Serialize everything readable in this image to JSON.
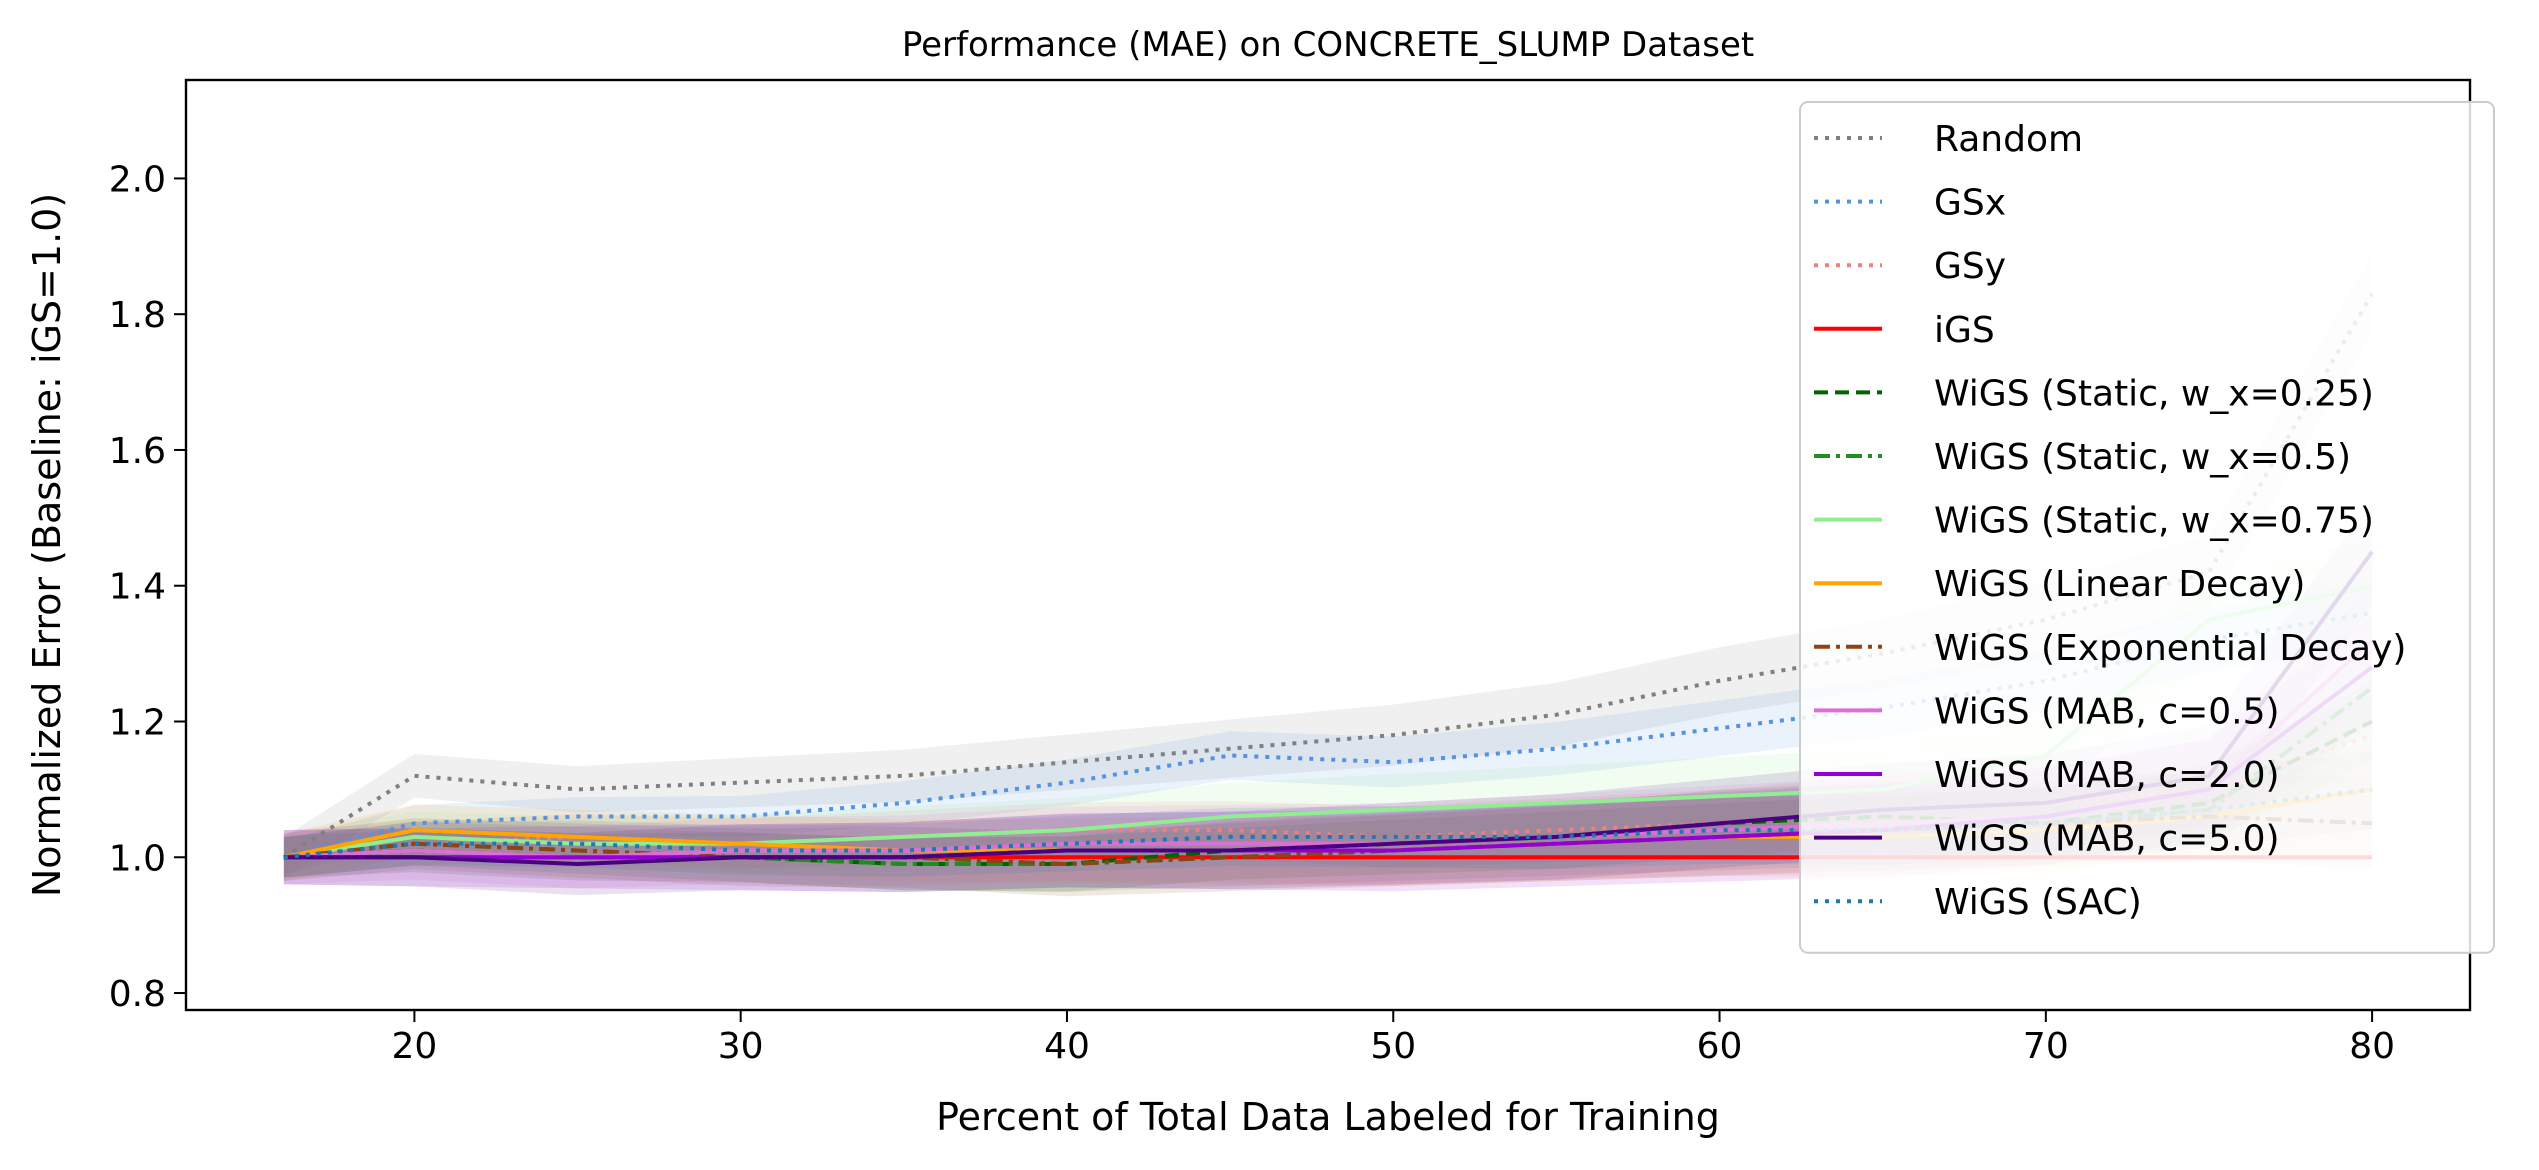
{
  "chart_data": {
    "type": "line",
    "title": "Performance (MAE) on CONCRETE_SLUMP Dataset",
    "xlabel": "Percent of Total Data Labeled for Training",
    "ylabel": "Normalized Error (Baseline: iGS=1.0)",
    "xlim": [
      13,
      83
    ],
    "ylim": [
      0.775,
      2.145
    ],
    "xticks": [
      20,
      30,
      40,
      50,
      60,
      70,
      80
    ],
    "yticks": [
      0.8,
      1.0,
      1.2,
      1.4,
      1.6,
      1.8,
      2.0
    ],
    "xtick_labels": [
      "20",
      "30",
      "40",
      "50",
      "60",
      "70",
      "80"
    ],
    "ytick_labels": [
      "0.8",
      "1.0",
      "1.2",
      "1.4",
      "1.6",
      "1.8",
      "2.0"
    ],
    "legend_position": "top-right",
    "grid": false,
    "x": [
      16,
      20,
      25,
      30,
      35,
      40,
      45,
      50,
      55,
      60,
      65,
      70,
      75,
      80
    ],
    "series": [
      {
        "name": "Random",
        "color": "#808080",
        "dash": "dotted",
        "values": [
          1.0,
          1.12,
          1.1,
          1.11,
          1.12,
          1.14,
          1.16,
          1.18,
          1.21,
          1.26,
          1.3,
          1.35,
          1.42,
          1.83
        ],
        "band": 0.03
      },
      {
        "name": "GSx",
        "color": "#5592e0",
        "dash": "dotted",
        "values": [
          1.0,
          1.05,
          1.06,
          1.06,
          1.08,
          1.11,
          1.15,
          1.14,
          1.16,
          1.19,
          1.22,
          1.26,
          1.32,
          1.36
        ],
        "band": 0.025
      },
      {
        "name": "GSy",
        "color": "#f08080",
        "dash": "dotted",
        "values": [
          1.0,
          1.02,
          1.03,
          1.02,
          1.03,
          1.04,
          1.04,
          1.03,
          1.04,
          1.05,
          1.07,
          1.08,
          1.1,
          1.18
        ],
        "band": 0.03
      },
      {
        "name": "iGS",
        "color": "#ff0000",
        "dash": "solid",
        "values": [
          1.0,
          1.0,
          1.0,
          1.0,
          1.0,
          1.0,
          1.0,
          1.0,
          1.0,
          1.0,
          1.0,
          1.0,
          1.0,
          1.0
        ],
        "band": 0.0
      },
      {
        "name": "WiGS (Static, w_x=0.25)",
        "color": "#006400",
        "dash": "dashed",
        "values": [
          1.0,
          1.01,
          1.0,
          1.0,
          0.99,
          0.99,
          1.01,
          1.02,
          1.03,
          1.05,
          1.06,
          1.05,
          1.08,
          1.2
        ],
        "band": 0.03
      },
      {
        "name": "WiGS (Static, w_x=0.5)",
        "color": "#228b22",
        "dash": "dashdot",
        "values": [
          1.0,
          1.02,
          1.01,
          1.0,
          0.99,
          0.99,
          1.0,
          1.01,
          1.02,
          1.03,
          1.04,
          1.05,
          1.07,
          1.25
        ],
        "band": 0.03
      },
      {
        "name": "WiGS (Static, w_x=0.75)",
        "color": "#90ee90",
        "dash": "solid",
        "values": [
          1.0,
          1.03,
          1.02,
          1.02,
          1.03,
          1.04,
          1.06,
          1.07,
          1.08,
          1.09,
          1.1,
          1.15,
          1.35,
          1.4
        ],
        "band": 0.035
      },
      {
        "name": "WiGS (Linear Decay)",
        "color": "#ffa500",
        "dash": "solid",
        "values": [
          1.0,
          1.04,
          1.03,
          1.02,
          1.01,
          1.01,
          1.01,
          1.01,
          1.02,
          1.03,
          1.03,
          1.04,
          1.06,
          1.1
        ],
        "band": 0.035
      },
      {
        "name": "WiGS (Exponential Decay)",
        "color": "#8b4513",
        "dash": "dashdot",
        "values": [
          1.0,
          1.02,
          1.01,
          1.0,
          1.0,
          0.99,
          1.0,
          1.01,
          1.02,
          1.03,
          1.04,
          1.05,
          1.06,
          1.05
        ],
        "band": 0.035
      },
      {
        "name": "WiGS (MAB, c=0.5)",
        "color": "#da70d6",
        "dash": "solid",
        "values": [
          1.0,
          1.01,
          1.0,
          1.01,
          1.01,
          1.02,
          1.02,
          1.02,
          1.03,
          1.04,
          1.05,
          1.06,
          1.1,
          1.32
        ],
        "band": 0.04
      },
      {
        "name": "WiGS (MAB, c=2.0)",
        "color": "#9400d3",
        "dash": "solid",
        "values": [
          1.0,
          1.0,
          1.0,
          1.0,
          1.0,
          1.01,
          1.01,
          1.01,
          1.02,
          1.03,
          1.04,
          1.06,
          1.1,
          1.28
        ],
        "band": 0.04
      },
      {
        "name": "WiGS (MAB, c=5.0)",
        "color": "#4b0082",
        "dash": "solid",
        "values": [
          1.0,
          1.0,
          0.99,
          1.0,
          1.0,
          1.01,
          1.01,
          1.02,
          1.03,
          1.05,
          1.07,
          1.08,
          1.12,
          1.45
        ],
        "band": 0.04
      },
      {
        "name": "WiGS (SAC)",
        "color": "#1f77b4",
        "dash": "dotted",
        "values": [
          1.0,
          1.02,
          1.02,
          1.01,
          1.01,
          1.02,
          1.03,
          1.03,
          1.03,
          1.04,
          1.04,
          1.05,
          1.07,
          1.1
        ],
        "band": 0.03
      }
    ]
  }
}
